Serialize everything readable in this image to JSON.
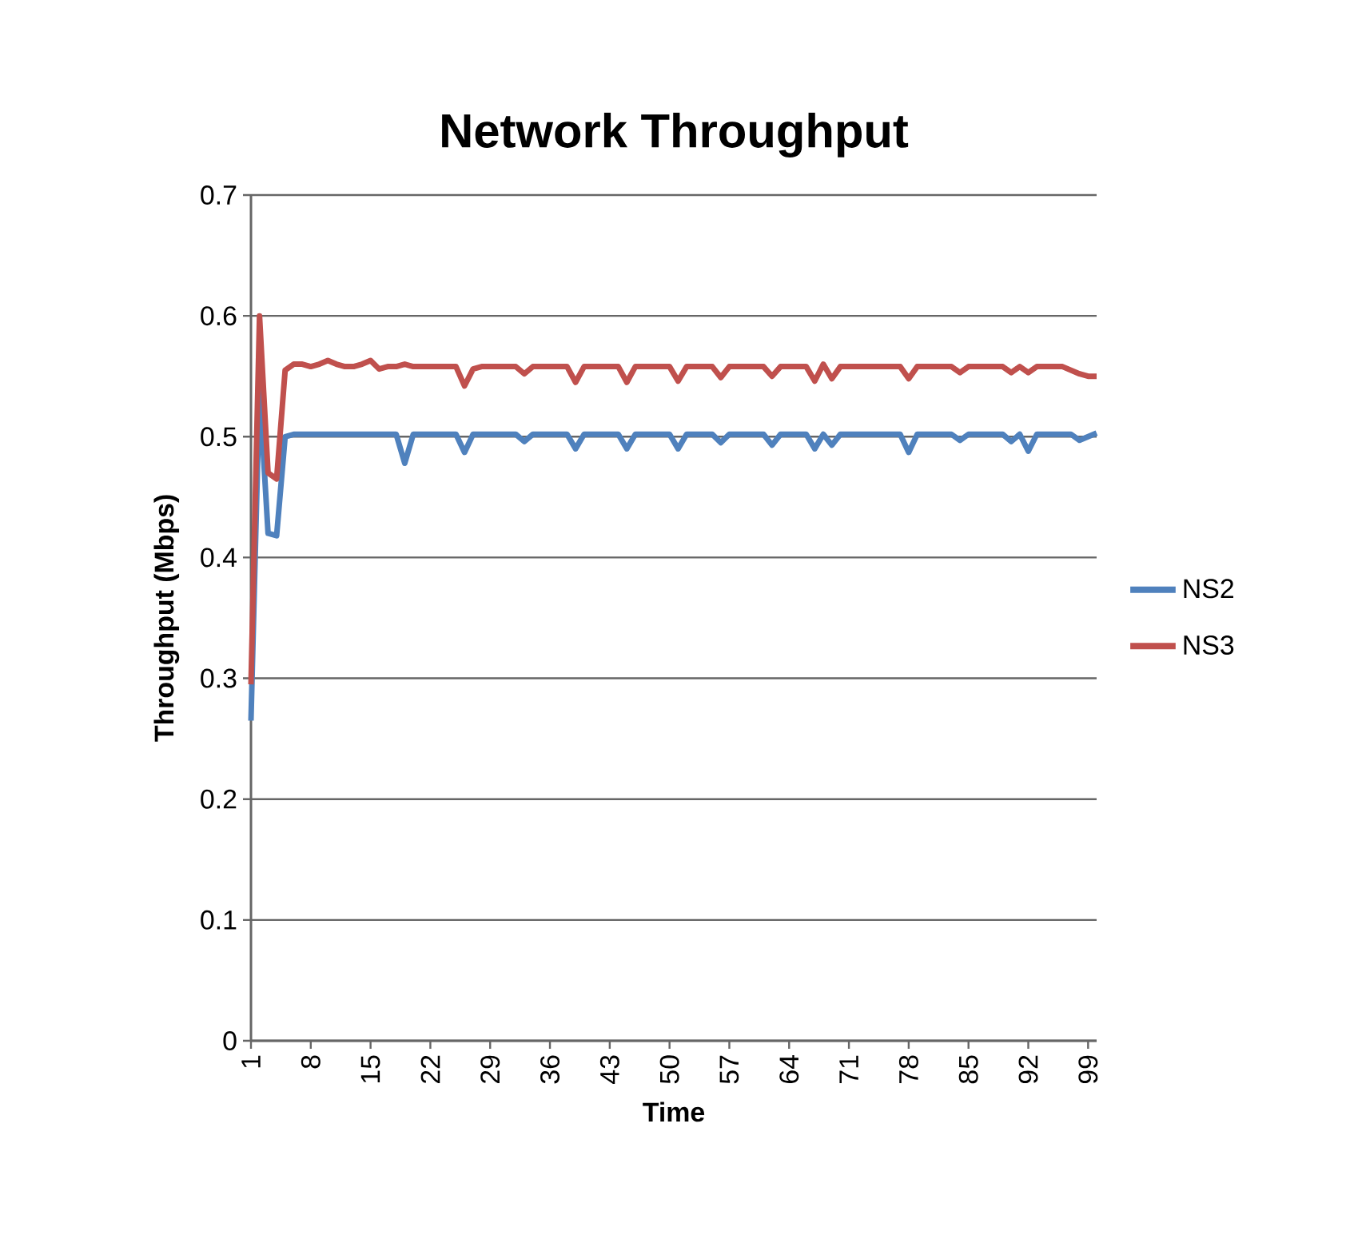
{
  "chart_data": {
    "type": "line",
    "title": "Network Throughput",
    "xlabel": "Time",
    "ylabel": "Throughput (Mbps)",
    "categories": [
      "1",
      null,
      null,
      null,
      null,
      null,
      null,
      "8",
      null,
      null,
      null,
      null,
      null,
      null,
      "15",
      null,
      null,
      null,
      null,
      null,
      null,
      "22",
      null,
      null,
      null,
      null,
      null,
      null,
      "29",
      null,
      null,
      null,
      null,
      null,
      null,
      "36",
      null,
      null,
      null,
      null,
      null,
      null,
      "43",
      null,
      null,
      null,
      null,
      null,
      null,
      "50",
      null,
      null,
      null,
      null,
      null,
      null,
      "57",
      null,
      null,
      null,
      null,
      null,
      null,
      "64",
      null,
      null,
      null,
      null,
      null,
      null,
      "71",
      null,
      null,
      null,
      null,
      null,
      null,
      "78",
      null,
      null,
      null,
      null,
      null,
      null,
      "85",
      null,
      null,
      null,
      null,
      null,
      null,
      "92",
      null,
      null,
      null,
      null,
      null,
      null,
      "99",
      null
    ],
    "series": [
      {
        "name": "NS2",
        "color": "#4f81bd",
        "values": [
          0.265,
          0.54,
          0.42,
          0.418,
          0.5,
          0.502,
          0.502,
          0.502,
          0.502,
          0.502,
          0.502,
          0.502,
          0.502,
          0.502,
          0.502,
          0.502,
          0.502,
          0.502,
          0.478,
          0.502,
          0.502,
          0.502,
          0.502,
          0.502,
          0.502,
          0.487,
          0.502,
          0.502,
          0.502,
          0.502,
          0.502,
          0.502,
          0.496,
          0.502,
          0.502,
          0.502,
          0.502,
          0.502,
          0.49,
          0.502,
          0.502,
          0.502,
          0.502,
          0.502,
          0.49,
          0.502,
          0.502,
          0.502,
          0.502,
          0.502,
          0.49,
          0.502,
          0.502,
          0.502,
          0.502,
          0.495,
          0.502,
          0.502,
          0.502,
          0.502,
          0.502,
          0.493,
          0.502,
          0.502,
          0.502,
          0.502,
          0.49,
          0.502,
          0.493,
          0.502,
          0.502,
          0.502,
          0.502,
          0.502,
          0.502,
          0.502,
          0.502,
          0.487,
          0.502,
          0.502,
          0.502,
          0.502,
          0.502,
          0.497,
          0.502,
          0.502,
          0.502,
          0.502,
          0.502,
          0.496,
          0.502,
          0.488,
          0.502,
          0.502,
          0.502,
          0.502,
          0.502,
          0.497,
          0.5,
          0.503
        ]
      },
      {
        "name": "NS3",
        "color": "#c0504d",
        "values": [
          0.295,
          0.6,
          0.47,
          0.465,
          0.555,
          0.56,
          0.56,
          0.558,
          0.56,
          0.563,
          0.56,
          0.558,
          0.558,
          0.56,
          0.563,
          0.556,
          0.558,
          0.558,
          0.56,
          0.558,
          0.558,
          0.558,
          0.558,
          0.558,
          0.558,
          0.542,
          0.556,
          0.558,
          0.558,
          0.558,
          0.558,
          0.558,
          0.552,
          0.558,
          0.558,
          0.558,
          0.558,
          0.558,
          0.545,
          0.558,
          0.558,
          0.558,
          0.558,
          0.558,
          0.545,
          0.558,
          0.558,
          0.558,
          0.558,
          0.558,
          0.546,
          0.558,
          0.558,
          0.558,
          0.558,
          0.549,
          0.558,
          0.558,
          0.558,
          0.558,
          0.558,
          0.55,
          0.558,
          0.558,
          0.558,
          0.558,
          0.546,
          0.56,
          0.548,
          0.558,
          0.558,
          0.558,
          0.558,
          0.558,
          0.558,
          0.558,
          0.558,
          0.548,
          0.558,
          0.558,
          0.558,
          0.558,
          0.558,
          0.553,
          0.558,
          0.558,
          0.558,
          0.558,
          0.558,
          0.553,
          0.558,
          0.553,
          0.558,
          0.558,
          0.558,
          0.558,
          0.555,
          0.552,
          0.55,
          0.55
        ]
      }
    ],
    "ylim": [
      0,
      0.7
    ],
    "yticks": [
      0,
      0.1,
      0.2,
      0.3,
      0.4,
      0.5,
      0.6,
      0.7
    ],
    "grid": "y",
    "legend": "right",
    "marker": "none",
    "line_style": "solid"
  }
}
